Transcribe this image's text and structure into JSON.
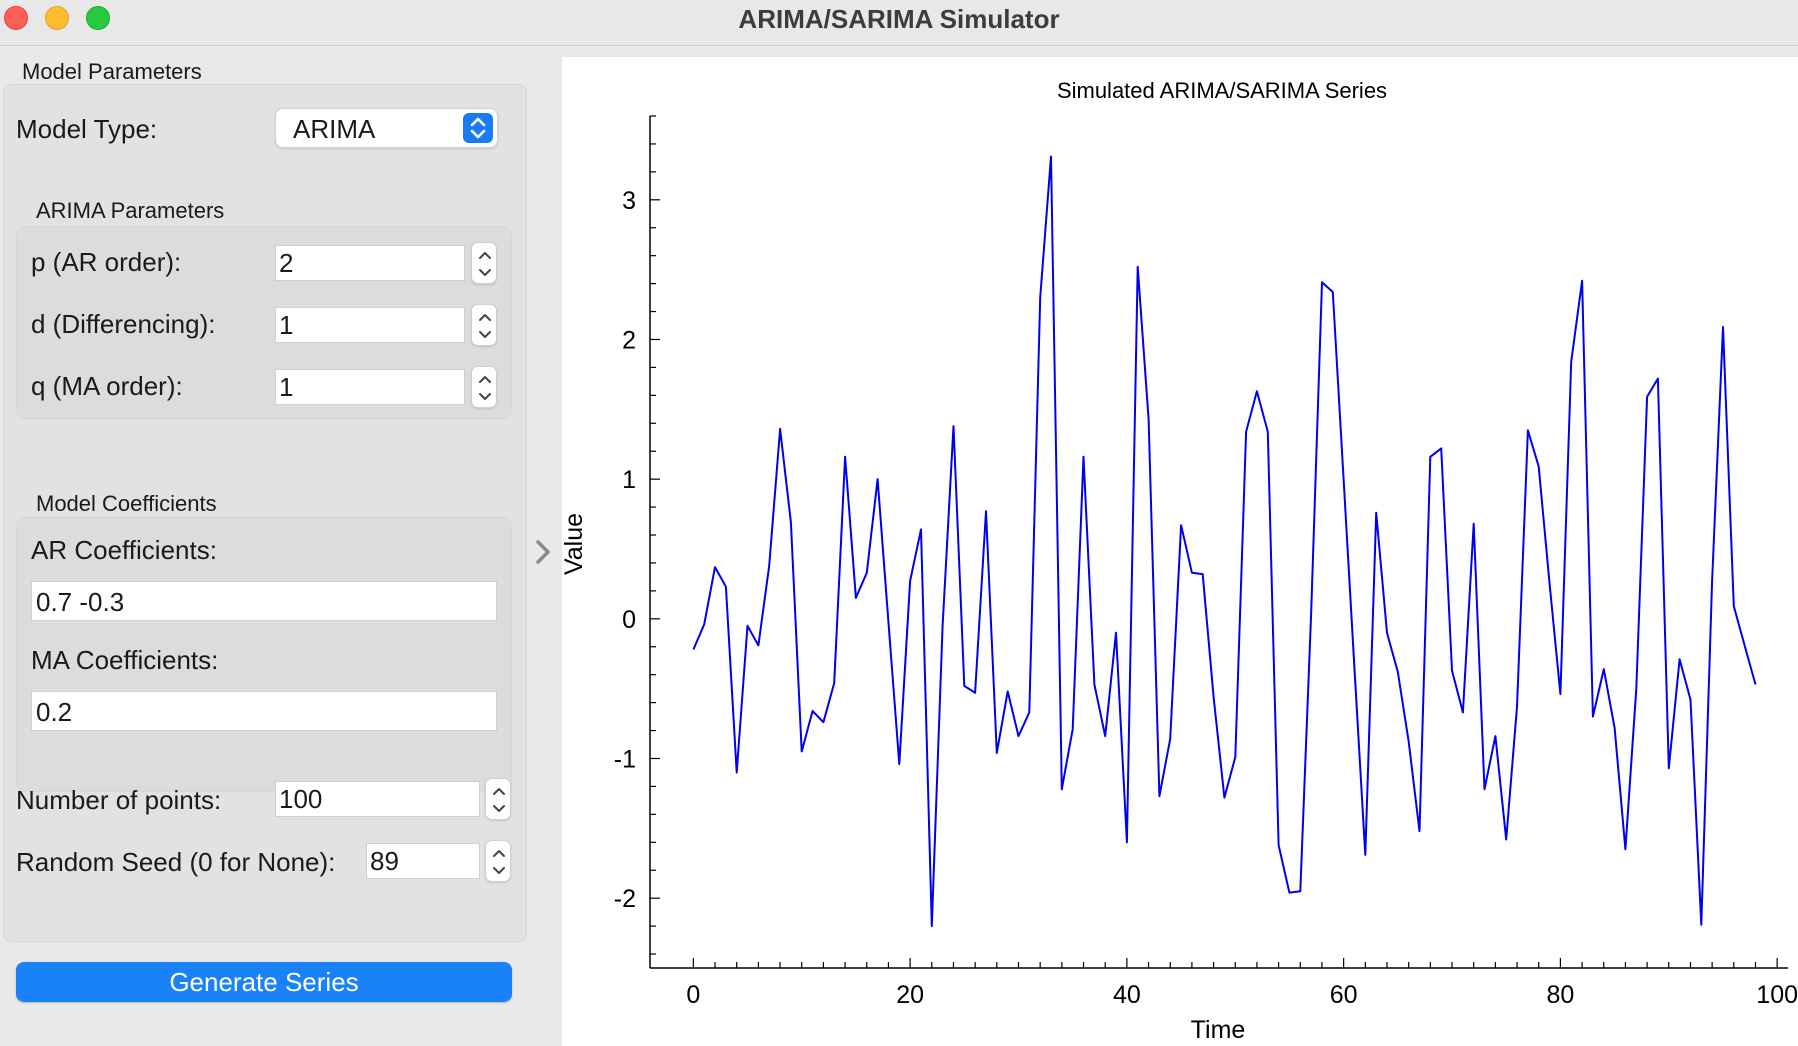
{
  "window": {
    "title": "ARIMA/SARIMA Simulator"
  },
  "model_parameters": {
    "group_title": "Model Parameters",
    "model_type_label": "Model Type:",
    "model_type_value": "ARIMA"
  },
  "arima_parameters": {
    "group_title": "ARIMA Parameters",
    "p_label": "p (AR order):",
    "p_value": "2",
    "d_label": "d (Differencing):",
    "d_value": "1",
    "q_label": "q (MA order):",
    "q_value": "1"
  },
  "coefficients": {
    "group_title": "Model Coefficients",
    "ar_label": "AR Coefficients:",
    "ar_value": "0.7 -0.3",
    "ma_label": "MA Coefficients:",
    "ma_value": "0.2"
  },
  "points": {
    "label": "Number of points:",
    "value": "100"
  },
  "seed": {
    "label": "Random Seed (0 for None):",
    "value": "89"
  },
  "generate_button": {
    "label": "Generate Series"
  },
  "colors": {
    "accent": "#1a82f7",
    "line": "#0000ee"
  },
  "chart_data": {
    "type": "line",
    "title": "Simulated ARIMA/SARIMA Series",
    "xlabel": "Time",
    "ylabel": "Value",
    "xlim": [
      -4,
      101
    ],
    "ylim": [
      -2.5,
      3.6
    ],
    "xticks": [
      0,
      20,
      40,
      60,
      80,
      100
    ],
    "yticks": [
      -2,
      -1,
      0,
      1,
      2,
      3
    ],
    "grid": false,
    "series": [
      {
        "values": [
          -0.22,
          -0.04,
          0.37,
          0.23,
          -1.1,
          -0.05,
          -0.19,
          0.38,
          1.36,
          0.69,
          -0.95,
          -0.66,
          -0.74,
          -0.46,
          1.16,
          0.15,
          0.33,
          1.0,
          -0.02,
          -1.04,
          0.27,
          0.64,
          -2.2,
          -0.05,
          1.38,
          -0.48,
          -0.53,
          0.77,
          -0.96,
          -0.52,
          -0.84,
          -0.67,
          2.3,
          3.31,
          -1.22,
          -0.79,
          1.16,
          -0.47,
          -0.84,
          -0.1,
          -1.6,
          2.52,
          1.43,
          -1.27,
          -0.86,
          0.67,
          0.33,
          0.32,
          -0.56,
          -1.28,
          -0.99,
          1.34,
          1.63,
          1.34,
          -1.62,
          -1.96,
          -1.95,
          0.03,
          2.41,
          2.34,
          1.0,
          -0.36,
          -1.69,
          0.76,
          -0.1,
          -0.38,
          -0.88,
          -1.52,
          1.16,
          1.22,
          -0.37,
          -0.67,
          0.68,
          -1.22,
          -0.84,
          -1.58,
          -0.63,
          1.35,
          1.09,
          0.25,
          -0.54,
          1.84,
          2.42,
          -0.7,
          -0.36,
          -0.78,
          -1.65,
          -0.5,
          1.59,
          1.72,
          -1.07,
          -0.29,
          -0.58,
          -2.19,
          0.27,
          2.09,
          0.09,
          -0.19,
          -0.47
        ]
      }
    ]
  }
}
